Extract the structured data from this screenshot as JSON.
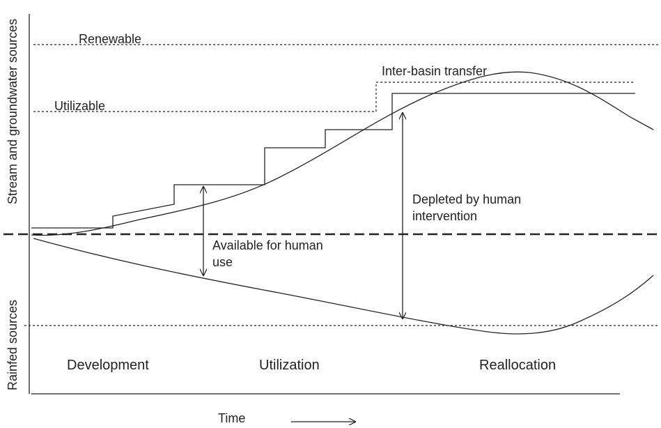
{
  "y_axis_labels": {
    "upper": "Stream and groundwater sources",
    "lower": "Rainfed sources"
  },
  "levels": {
    "renewable": "Renewable",
    "utilizable": "Utilizable",
    "inter_basin": "Inter-basin transfer"
  },
  "annotations": {
    "available": [
      "Available for human",
      "use"
    ],
    "depleted": [
      "Depleted by human",
      "intervention"
    ]
  },
  "phases": [
    "Development",
    "Utilization",
    "Reallocation"
  ],
  "x_axis_label": "Time"
}
